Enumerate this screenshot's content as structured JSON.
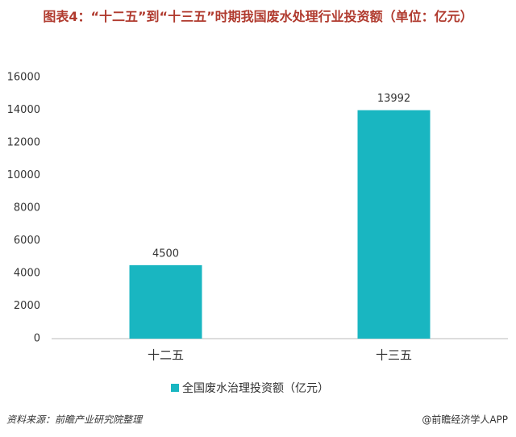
{
  "chart_data": {
    "type": "bar",
    "title": "图表4：“十二五”到“十三五”时期我国废水处理行业投资额（单位：亿元）",
    "categories": [
      "十二五",
      "十三五"
    ],
    "series": [
      {
        "name": "全国废水治理投资额（亿元）",
        "color": "#19b6c1",
        "values": [
          4500,
          13992
        ]
      }
    ],
    "ylim": [
      0,
      16000
    ],
    "yticks": [
      0,
      2000,
      4000,
      6000,
      8000,
      10000,
      12000,
      14000,
      16000
    ],
    "grid": false,
    "legend": "bottom",
    "source": "资料来源：前瞻产业研究院整理",
    "credit": "@前瞻经济学人APP"
  }
}
